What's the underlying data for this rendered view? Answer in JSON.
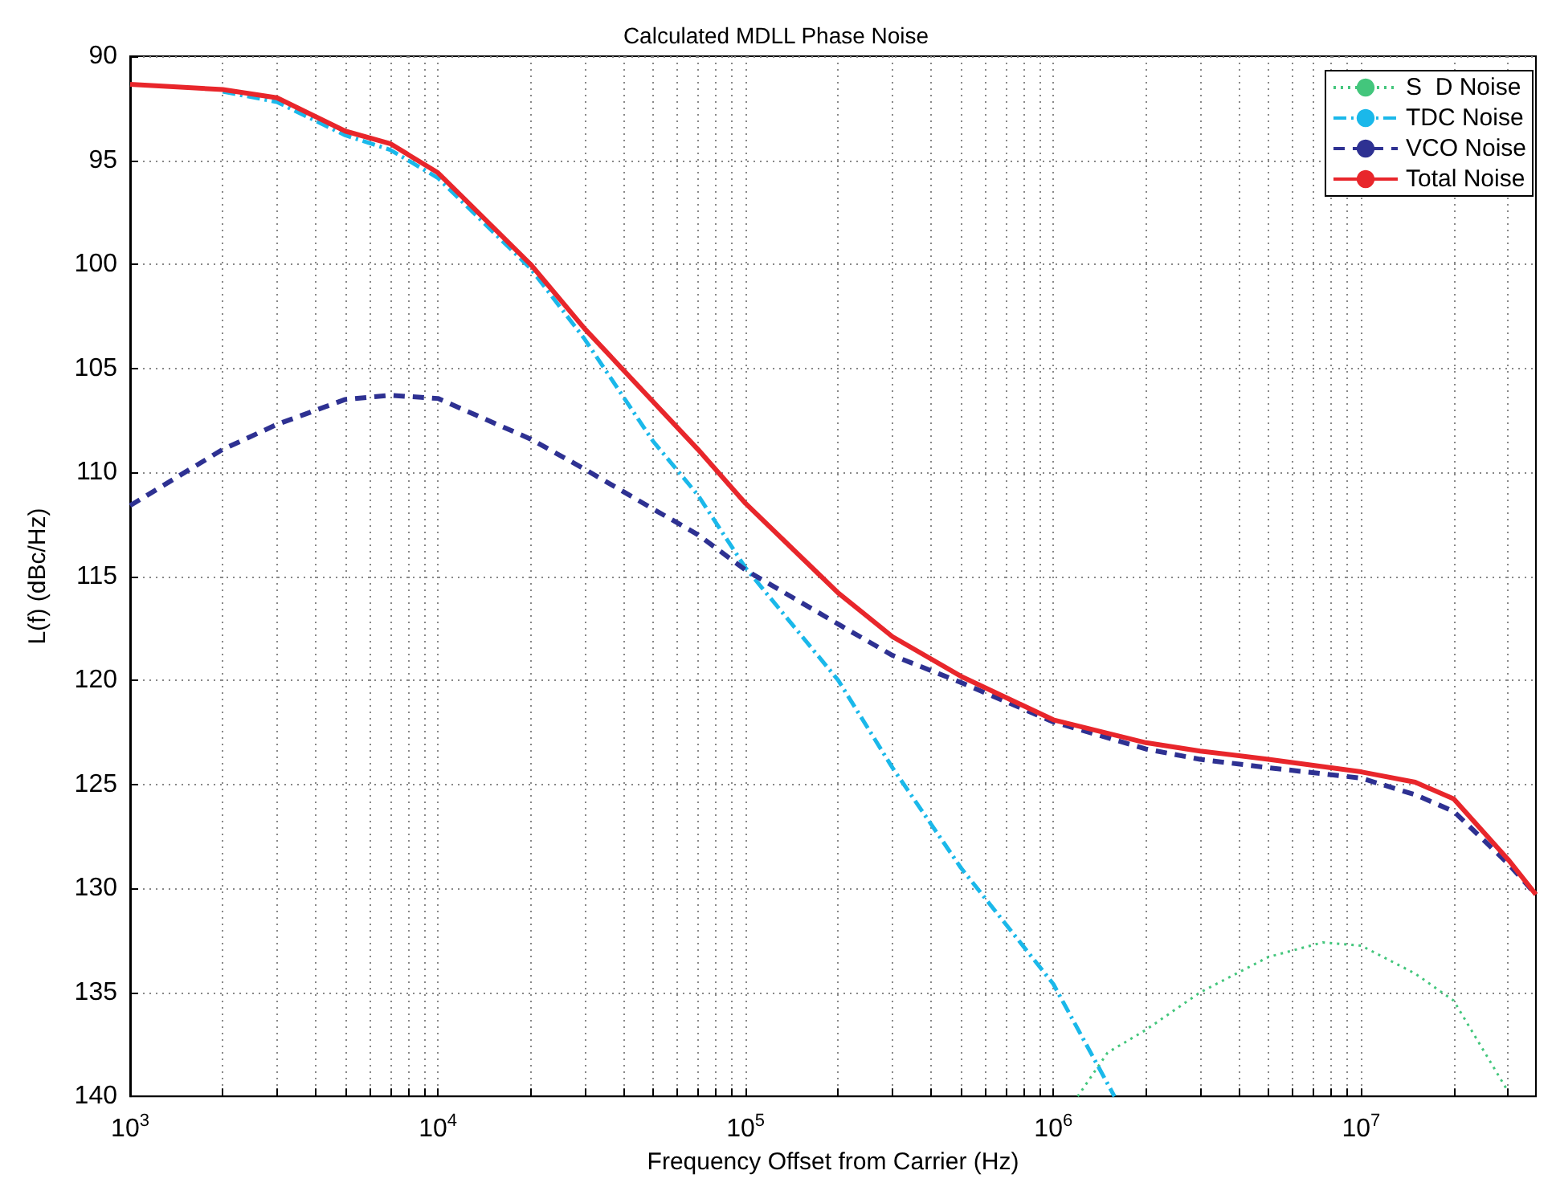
{
  "chart_data": {
    "type": "line",
    "title": "Calculated MDLL Phase Noise",
    "xlabel": "Frequency Offset from Carrier (Hz)",
    "ylabel": "L(f) (dBc/Hz)",
    "log": "x",
    "grid": true,
    "legend": "top right",
    "marker": "none",
    "xlim": [
      1000,
      37000000
    ],
    "xticks": [
      {
        "value": 1000,
        "label": "10$^{3}$"
      },
      {
        "value": 2000,
        "label": null
      },
      {
        "value": 3000,
        "label": null
      },
      {
        "value": 4000,
        "label": null
      },
      {
        "value": 5000,
        "label": null
      },
      {
        "value": 6000,
        "label": null
      },
      {
        "value": 7000,
        "label": null
      },
      {
        "value": 8000,
        "label": null
      },
      {
        "value": 9000,
        "label": null
      },
      {
        "value": 10000,
        "label": "10$^{4}$"
      },
      {
        "value": 20000,
        "label": null
      },
      {
        "value": 30000,
        "label": null
      },
      {
        "value": 40000,
        "label": null
      },
      {
        "value": 50000,
        "label": null
      },
      {
        "value": 60000,
        "label": null
      },
      {
        "value": 70000,
        "label": null
      },
      {
        "value": 80000,
        "label": null
      },
      {
        "value": 90000,
        "label": null
      },
      {
        "value": 100000,
        "label": "10$^{5}$"
      },
      {
        "value": 200000,
        "label": null
      },
      {
        "value": 300000,
        "label": null
      },
      {
        "value": 400000,
        "label": null
      },
      {
        "value": 500000,
        "label": null
      },
      {
        "value": 600000,
        "label": null
      },
      {
        "value": 700000,
        "label": null
      },
      {
        "value": 800000,
        "label": null
      },
      {
        "value": 900000,
        "label": null
      },
      {
        "value": 1000000,
        "label": "10$^{6}$"
      },
      {
        "value": 2000000,
        "label": null
      },
      {
        "value": 3000000,
        "label": null
      },
      {
        "value": 4000000,
        "label": null
      },
      {
        "value": 5000000,
        "label": null
      },
      {
        "value": 6000000,
        "label": null
      },
      {
        "value": 7000000,
        "label": null
      },
      {
        "value": 8000000,
        "label": null
      },
      {
        "value": 9000000,
        "label": null
      },
      {
        "value": 10000000,
        "label": "10$^{7}$"
      },
      {
        "value": 20000000,
        "label": null
      },
      {
        "value": 30000000,
        "label": null
      }
    ],
    "ylim": [
      140,
      90
    ],
    "yticks": [
      90,
      95,
      100,
      105,
      110,
      115,
      120,
      125,
      130,
      135,
      140
    ],
    "series": [
      {
        "name": "S  D Noise",
        "color": "#43c67c",
        "line_style": "dotted",
        "x": [
          1200000,
          1500000,
          2000000,
          3000000,
          5000000,
          7500000,
          10000000,
          15000000,
          20000000,
          30000000
        ],
        "values": [
          140,
          137.9,
          136.8,
          135,
          133.3,
          132.6,
          132.75,
          134.1,
          135.4,
          139.75
        ]
      },
      {
        "name": "TDC Noise",
        "color": "#1ab8ea",
        "line_style": "dashdot",
        "x": [
          2000,
          3000,
          5000,
          7000,
          10000,
          20000,
          30000,
          50000,
          70000,
          100000,
          200000,
          300000,
          500000,
          1000000,
          1580000
        ],
        "values": [
          91.7,
          92.2,
          93.8,
          94.5,
          95.85,
          100.2,
          103.6,
          108.5,
          111.1,
          114.6,
          120,
          124.2,
          129,
          134.6,
          140
        ]
      },
      {
        "name": "VCO Noise",
        "color": "#2e3192",
        "line_style": "dashed",
        "x": [
          1000,
          2000,
          3000,
          5000,
          7000,
          10000,
          20000,
          30000,
          50000,
          70000,
          100000,
          200000,
          300000,
          500000,
          1000000,
          2000000,
          3000000,
          5000000,
          10000000,
          15000000,
          20000000,
          30000000,
          37000000
        ],
        "values": [
          111.6,
          108.9,
          107.7,
          106.5,
          106.3,
          106.45,
          108.4,
          109.85,
          111.76,
          113,
          114.7,
          117.3,
          118.8,
          120.1,
          122,
          123.3,
          123.8,
          124.2,
          124.7,
          125.5,
          126.3,
          128.8,
          130.3
        ]
      },
      {
        "name": "Total Noise",
        "color": "#e8262b",
        "line_style": "solid",
        "x": [
          1000,
          2000,
          3000,
          5000,
          7000,
          10000,
          20000,
          30000,
          50000,
          70000,
          100000,
          200000,
          300000,
          500000,
          1000000,
          2000000,
          3000000,
          5000000,
          10000000,
          15000000,
          20000000,
          30000000,
          37000000
        ],
        "values": [
          91.35,
          91.6,
          92,
          93.6,
          94.2,
          95.6,
          100,
          103.1,
          106.6,
          108.9,
          111.5,
          115.8,
          117.9,
          119.8,
          121.9,
          123,
          123.4,
          123.8,
          124.4,
          124.9,
          125.7,
          128.6,
          130.3
        ]
      }
    ]
  }
}
